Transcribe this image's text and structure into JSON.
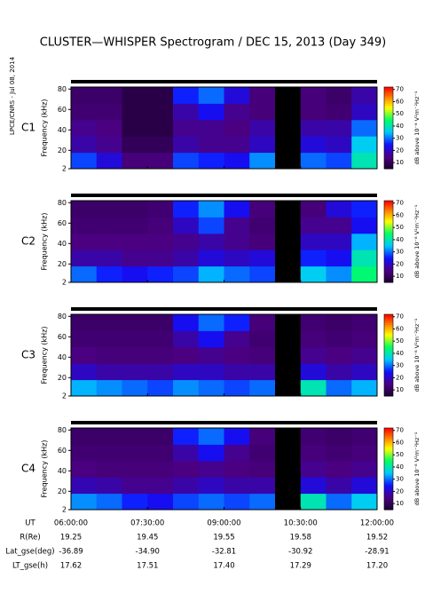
{
  "title": "CLUSTER—WHISPER Spectrogram / DEC 15, 2013 (Day 349)",
  "side_note": "LPCE/CNRS - Jul 08, 2014",
  "chart_data": [
    {
      "type": "spectrogram",
      "label": "C1",
      "label_color": "#000000",
      "ylabel": "Frequency (kHz)",
      "ylim": [
        2,
        82
      ],
      "yticks": [
        2,
        20,
        40,
        60,
        80
      ],
      "zlim": [
        5,
        72
      ],
      "zticks": [
        10,
        20,
        30,
        40,
        50,
        60,
        70
      ],
      "zlabel": "dB above 10⁻⁸ V²m⁻²Hz⁻¹",
      "z": [
        [
          28,
          22,
          14,
          14,
          28,
          26,
          24,
          32,
          null,
          30,
          28,
          40
        ],
        [
          18,
          16,
          10,
          10,
          18,
          16,
          16,
          20,
          null,
          22,
          20,
          36
        ],
        [
          16,
          15,
          8,
          8,
          16,
          16,
          15,
          18,
          null,
          18,
          18,
          30
        ],
        [
          13,
          13,
          8,
          8,
          18,
          24,
          16,
          14,
          null,
          14,
          13,
          20
        ],
        [
          12,
          12,
          8,
          8,
          26,
          30,
          22,
          14,
          null,
          14,
          12,
          18
        ]
      ]
    },
    {
      "type": "spectrogram",
      "label": "C2",
      "label_color": "#000000",
      "ylabel": "Frequency (kHz)",
      "ylim": [
        2,
        82
      ],
      "yticks": [
        2,
        20,
        40,
        60,
        80
      ],
      "zlim": [
        5,
        72
      ],
      "zticks": [
        10,
        20,
        30,
        40,
        50,
        60,
        70
      ],
      "zlabel": "dB above 10⁻⁸ V²m⁻²Hz⁻¹",
      "z": [
        [
          30,
          26,
          24,
          26,
          28,
          34,
          30,
          28,
          null,
          36,
          32,
          44
        ],
        [
          18,
          18,
          16,
          16,
          18,
          22,
          20,
          22,
          null,
          26,
          24,
          40
        ],
        [
          15,
          15,
          15,
          15,
          16,
          18,
          16,
          14,
          null,
          20,
          20,
          34
        ],
        [
          13,
          13,
          13,
          14,
          20,
          28,
          16,
          13,
          null,
          16,
          16,
          24
        ],
        [
          12,
          12,
          12,
          13,
          26,
          32,
          24,
          14,
          null,
          14,
          22,
          26
        ]
      ]
    },
    {
      "type": "spectrogram",
      "label": "C3",
      "label_color": "#1ab01a",
      "ylabel": "Frequency (kHz)",
      "ylim": [
        2,
        82
      ],
      "yticks": [
        2,
        20,
        40,
        60,
        80
      ],
      "zlim": [
        5,
        72
      ],
      "zticks": [
        10,
        20,
        30,
        40,
        50,
        60,
        70
      ],
      "zlabel": "dB above 10⁻⁸ V²m⁻²Hz⁻¹",
      "z": [
        [
          34,
          32,
          30,
          28,
          32,
          30,
          28,
          30,
          null,
          40,
          30,
          34
        ],
        [
          20,
          18,
          18,
          18,
          20,
          20,
          18,
          18,
          null,
          22,
          18,
          20
        ],
        [
          15,
          14,
          14,
          14,
          15,
          16,
          15,
          14,
          null,
          16,
          15,
          16
        ],
        [
          13,
          13,
          13,
          13,
          18,
          24,
          16,
          13,
          null,
          14,
          13,
          14
        ],
        [
          12,
          12,
          12,
          12,
          24,
          30,
          26,
          14,
          null,
          13,
          12,
          13
        ]
      ]
    },
    {
      "type": "spectrogram",
      "label": "C4",
      "label_color": "#000000",
      "ylabel": "Frequency (kHz)",
      "ylim": [
        2,
        82
      ],
      "yticks": [
        2,
        20,
        40,
        60,
        80
      ],
      "zlim": [
        5,
        72
      ],
      "zticks": [
        10,
        20,
        30,
        40,
        50,
        60,
        70
      ],
      "zlabel": "dB above 10⁻⁸ V²m⁻²Hz⁻¹",
      "z": [
        [
          32,
          30,
          26,
          24,
          28,
          30,
          28,
          30,
          null,
          40,
          30,
          36
        ],
        [
          19,
          18,
          16,
          16,
          18,
          20,
          18,
          18,
          null,
          22,
          18,
          22
        ],
        [
          15,
          14,
          14,
          14,
          15,
          16,
          15,
          14,
          null,
          16,
          15,
          16
        ],
        [
          13,
          13,
          13,
          13,
          18,
          24,
          16,
          13,
          null,
          14,
          13,
          14
        ],
        [
          12,
          12,
          12,
          12,
          26,
          30,
          24,
          14,
          null,
          13,
          12,
          13
        ]
      ]
    }
  ],
  "ephemeris": {
    "rows": [
      {
        "label": "UT",
        "values": [
          "06:00:00",
          "07:30:00",
          "09:00:00",
          "10:30:00",
          "12:00:00"
        ]
      },
      {
        "label": "R(Re)",
        "values": [
          "19.25",
          "19.45",
          "19.55",
          "19.58",
          "19.52"
        ]
      },
      {
        "label": "Lat_gse(deg)",
        "values": [
          "-36.89",
          "-34.90",
          "-32.81",
          "-30.92",
          "-28.91"
        ]
      },
      {
        "label": "LT_gse(h)",
        "values": [
          "17.62",
          "17.51",
          "17.40",
          "17.29",
          "17.20"
        ]
      }
    ]
  }
}
